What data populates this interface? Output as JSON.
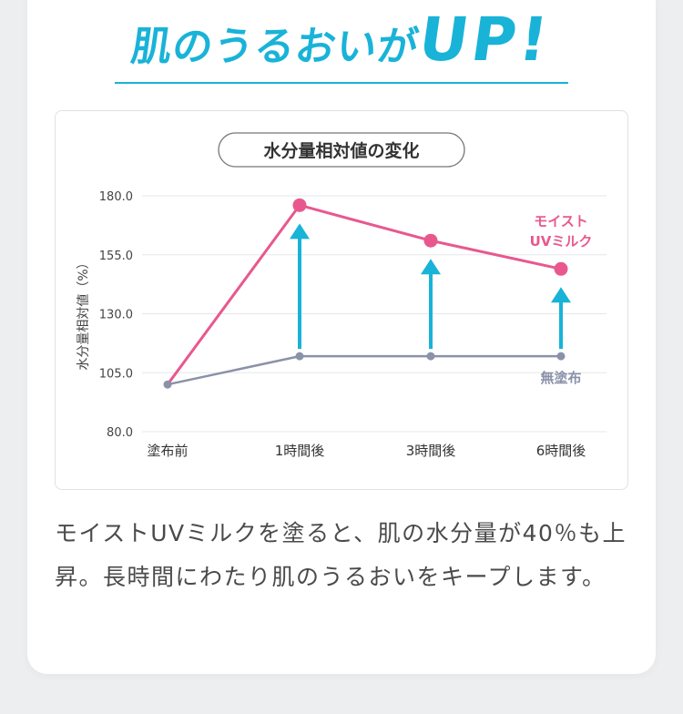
{
  "headline": {
    "prefix": "肌のうるおいが",
    "emphasis": "UP!"
  },
  "chart_data": {
    "type": "line",
    "title": "水分量相対値の変化",
    "xlabel": "",
    "ylabel": "水分量相対値（%）",
    "categories": [
      "塗布前",
      "1時間後",
      "3時間後",
      "6時間後"
    ],
    "ylim": [
      80,
      180
    ],
    "yticks": [
      "180.0",
      "155.0",
      "130.0",
      "105.0",
      "80.0"
    ],
    "grid": true,
    "series": [
      {
        "name": "モイストUVミルク",
        "label_lines": [
          "モイスト",
          "UVミルク"
        ],
        "values": [
          100,
          176,
          161,
          149
        ],
        "color": "#e8588e"
      },
      {
        "name": "無塗布",
        "label_lines": [
          "無塗布"
        ],
        "values": [
          100,
          112,
          112,
          112
        ],
        "color": "#8a92a8"
      }
    ],
    "arrow_color": "#19b3d8"
  },
  "description": "モイストUVミルクを塗ると、肌の水分量が40％も上昇。長時間にわたり肌のうるおいをキープします。"
}
